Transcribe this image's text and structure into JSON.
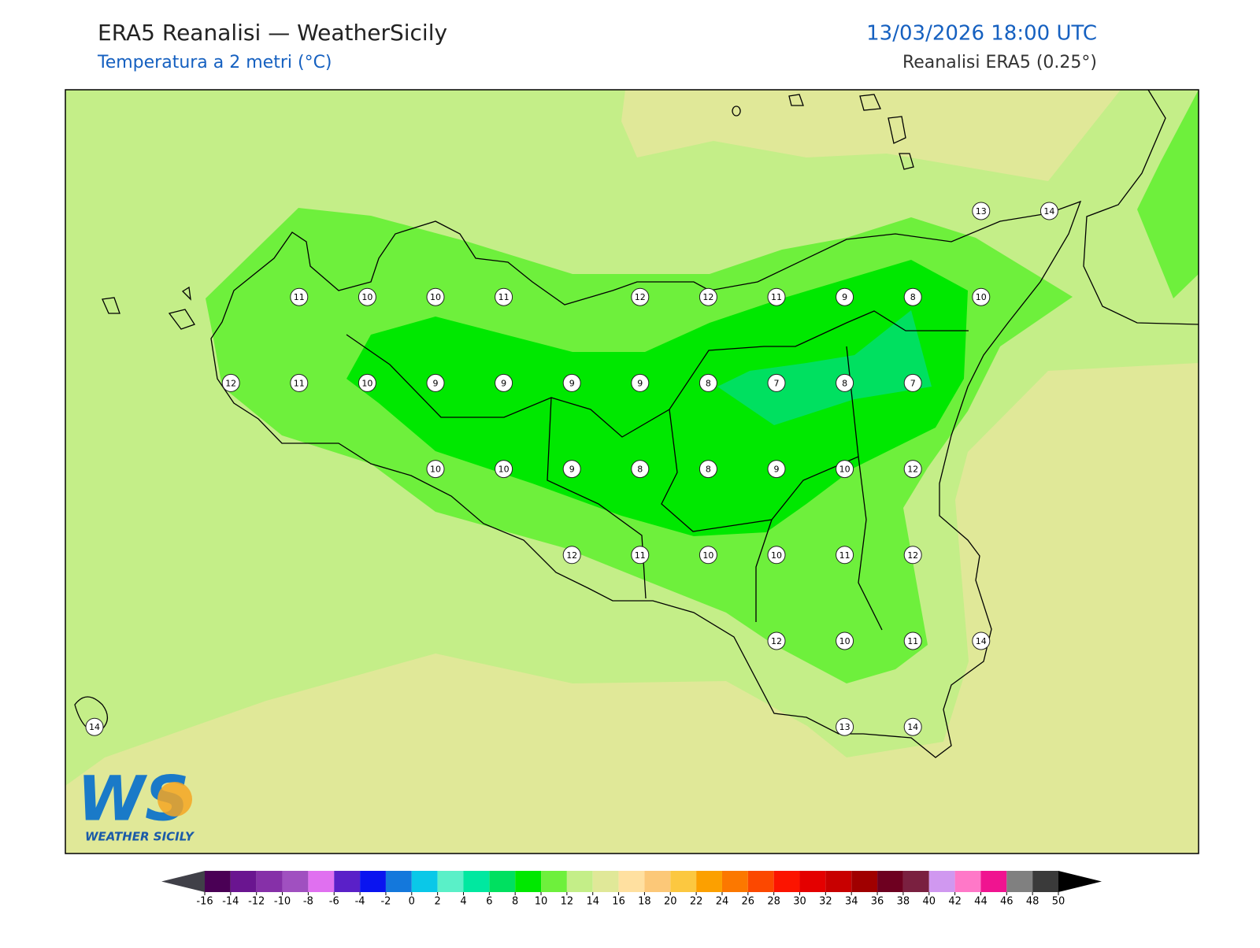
{
  "header": {
    "title": "ERA5 Reanalisi — WeatherSicily",
    "subtitle": "Temperatura a 2 metri (°C)",
    "valid_time": "13/03/2026 18:00 UTC",
    "source": "Reanalisi ERA5 (0.25°)"
  },
  "map": {
    "stations": [
      [
        null,
        null,
        null,
        null,
        null,
        null,
        null,
        null,
        null,
        null,
        null,
        null,
        null,
        13,
        14
      ],
      [
        null,
        null,
        null,
        11,
        10,
        10,
        11,
        null,
        12,
        12,
        11,
        9,
        8,
        10,
        null
      ],
      [
        null,
        null,
        12,
        11,
        10,
        9,
        9,
        9,
        9,
        8,
        7,
        8,
        7,
        null,
        null
      ],
      [
        null,
        null,
        null,
        null,
        null,
        10,
        10,
        9,
        8,
        8,
        9,
        10,
        12,
        null,
        null
      ],
      [
        null,
        null,
        null,
        null,
        null,
        null,
        null,
        12,
        11,
        10,
        10,
        11,
        12,
        null,
        null
      ],
      [
        null,
        null,
        null,
        null,
        null,
        null,
        null,
        null,
        null,
        null,
        12,
        10,
        11,
        14,
        null
      ],
      [
        14,
        null,
        null,
        null,
        null,
        null,
        null,
        null,
        null,
        null,
        null,
        13,
        14,
        null,
        null
      ]
    ]
  },
  "colorbar": {
    "ticks": [
      -16,
      -14,
      -12,
      -10,
      -8,
      -6,
      -4,
      -2,
      0,
      2,
      4,
      6,
      8,
      10,
      12,
      14,
      16,
      18,
      20,
      22,
      24,
      26,
      28,
      30,
      32,
      34,
      36,
      38,
      40,
      42,
      44,
      46,
      48,
      50
    ],
    "colors": [
      "#4a0055",
      "#6a1590",
      "#8630a8",
      "#a050c0",
      "#e070f0",
      "#5a20c8",
      "#0a14f0",
      "#1478dc",
      "#0ac8e8",
      "#5af0c8",
      "#00e8a0",
      "#00e060",
      "#00e800",
      "#6ef03c",
      "#c4ee88",
      "#e0e898",
      "#ffe0a0",
      "#fcc878",
      "#fcc840",
      "#fca000",
      "#fc7800",
      "#fc4800",
      "#fc1400",
      "#e40000",
      "#c80000",
      "#a00000",
      "#6e0020",
      "#7a2040",
      "#d098f0",
      "#ff78c8",
      "#f01490",
      "#808080",
      "#3a3a3a"
    ],
    "under_color": "#404048",
    "over_color": "#000000"
  },
  "logo": {
    "mark": "WS",
    "text": "WEATHER SICILY"
  }
}
